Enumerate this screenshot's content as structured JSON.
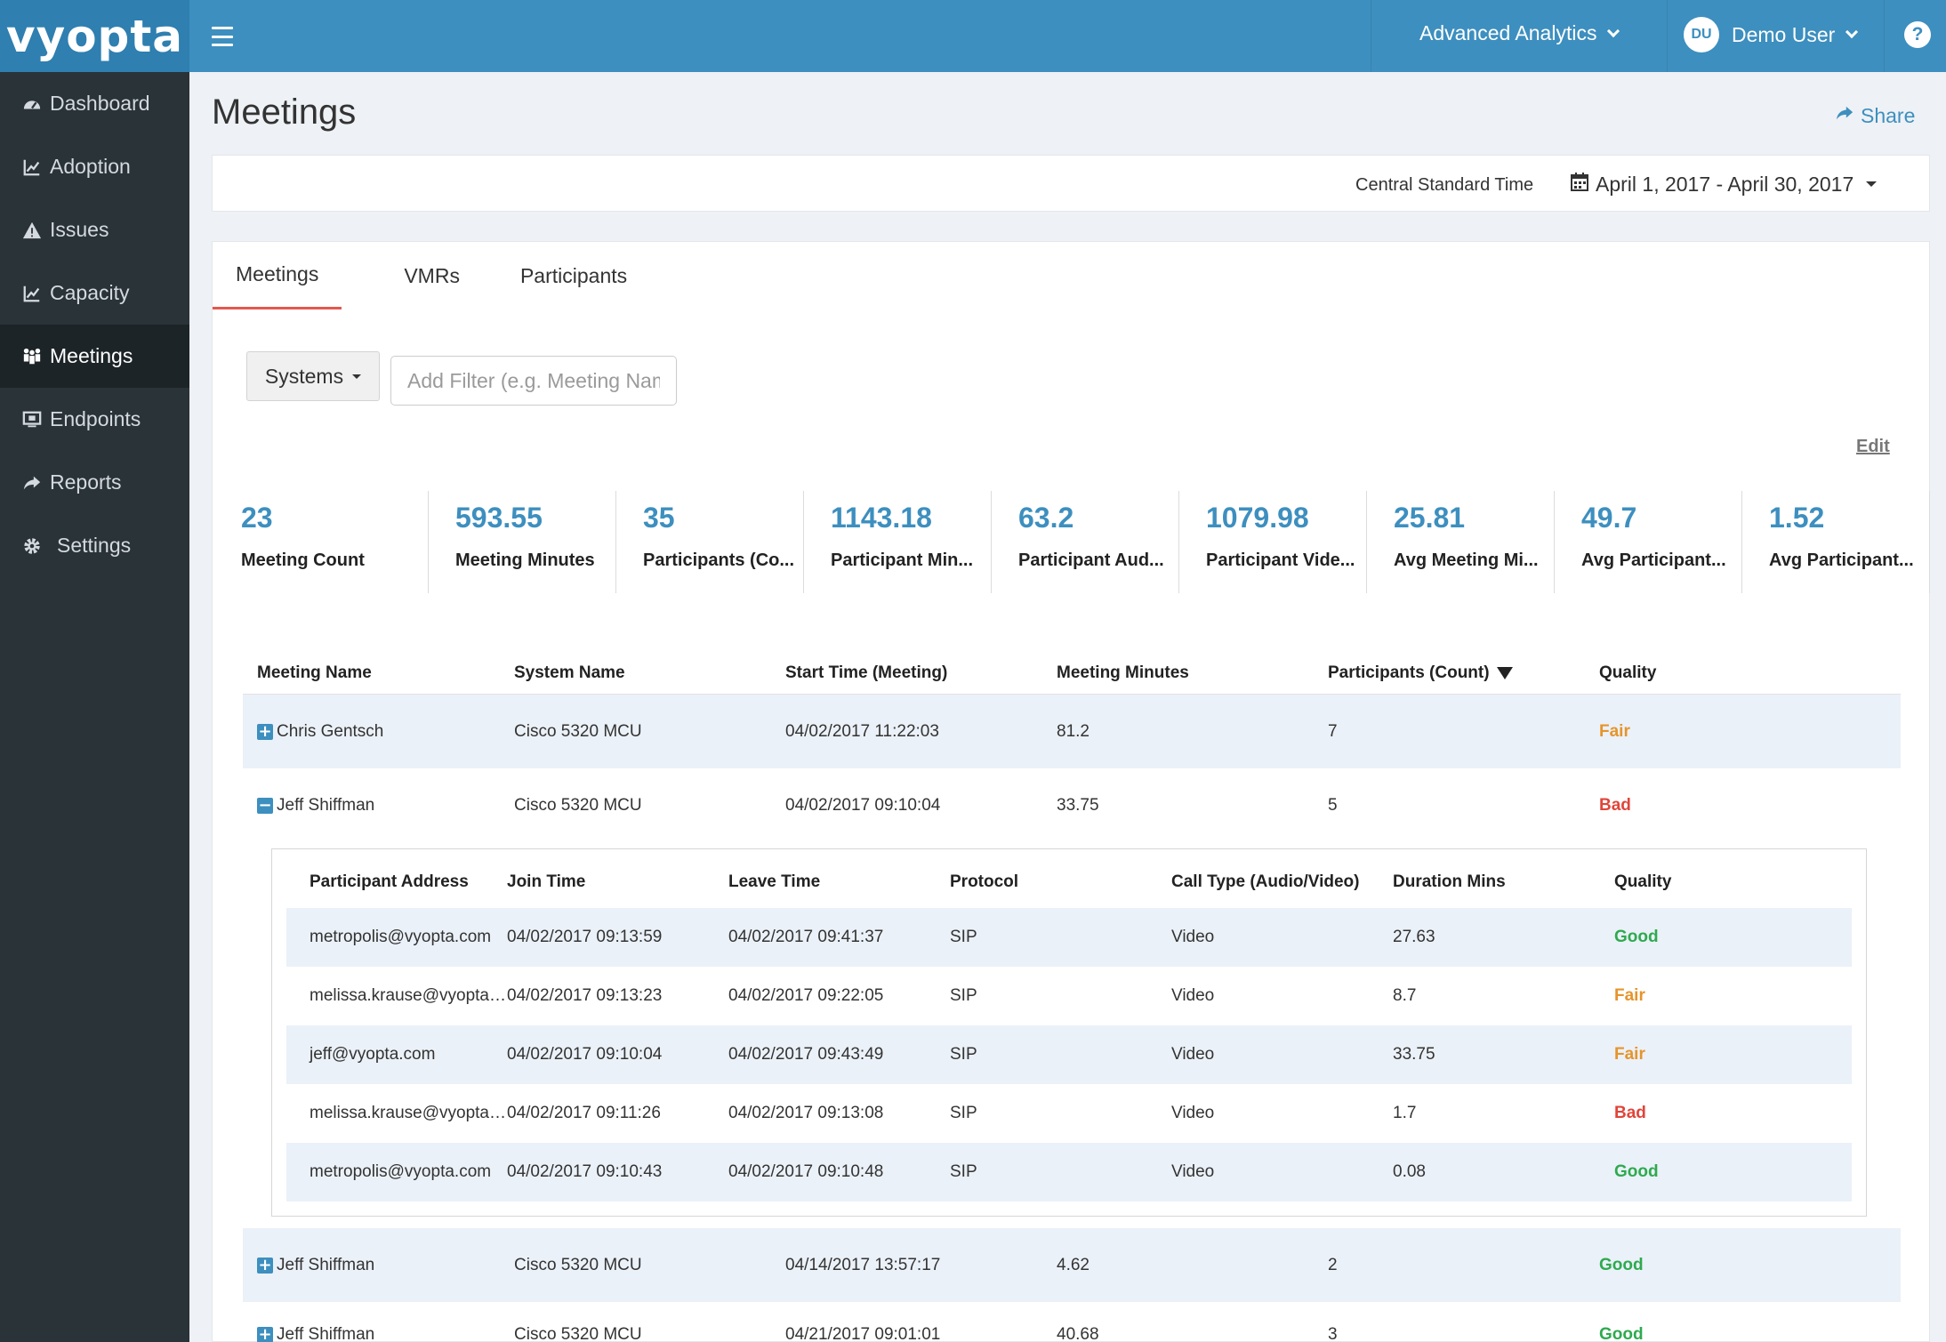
{
  "app": {
    "logo": "vyopta"
  },
  "header": {
    "analytics_label": "Advanced Analytics",
    "user_initials": "DU",
    "user_name": "Demo User",
    "help_symbol": "?"
  },
  "sidebar": {
    "items": [
      {
        "label": "Dashboard",
        "icon": "dashboard-icon"
      },
      {
        "label": "Adoption",
        "icon": "line-chart-icon"
      },
      {
        "label": "Issues",
        "icon": "warning-icon"
      },
      {
        "label": "Capacity",
        "icon": "line-chart-icon"
      },
      {
        "label": "Meetings",
        "icon": "people-icon",
        "active": true
      },
      {
        "label": "Endpoints",
        "icon": "monitor-icon"
      },
      {
        "label": "Reports",
        "icon": "share-icon"
      },
      {
        "label": "Settings",
        "icon": "gear-icon"
      }
    ]
  },
  "page": {
    "title": "Meetings",
    "share_label": "Share",
    "timezone": "Central Standard Time",
    "date_range": "April 1, 2017 - April 30, 2017"
  },
  "tabs": [
    "Meetings",
    "VMRs",
    "Participants"
  ],
  "filter": {
    "systems_label": "Systems",
    "placeholder": "Add Filter (e.g. Meeting Name contains John)",
    "edit_label": "Edit"
  },
  "kpis": [
    {
      "value": "23",
      "label": "Meeting Count"
    },
    {
      "value": "593.55",
      "label": "Meeting Minutes"
    },
    {
      "value": "35",
      "label": "Participants (Co..."
    },
    {
      "value": "1143.18",
      "label": "Participant Min..."
    },
    {
      "value": "63.2",
      "label": "Participant Aud..."
    },
    {
      "value": "1079.98",
      "label": "Participant Vide..."
    },
    {
      "value": "25.81",
      "label": "Avg Meeting Mi..."
    },
    {
      "value": "49.7",
      "label": "Avg Participant..."
    },
    {
      "value": "1.52",
      "label": "Avg Participant..."
    }
  ],
  "meetings_table": {
    "columns": [
      "Meeting Name",
      "System Name",
      "Start Time (Meeting)",
      "Meeting Minutes",
      "Participants (Count)",
      "Quality"
    ],
    "rows": [
      {
        "name": "Chris Gentsch",
        "system": "Cisco 5320 MCU",
        "start": "04/02/2017 11:22:03",
        "minutes": "81.2",
        "participants": "7",
        "quality": "Fair"
      },
      {
        "name": "Jeff Shiffman",
        "system": "Cisco 5320 MCU",
        "start": "04/02/2017 09:10:04",
        "minutes": "33.75",
        "participants": "5",
        "quality": "Bad"
      },
      {
        "name": "Jeff Shiffman",
        "system": "Cisco 5320 MCU",
        "start": "04/14/2017 13:57:17",
        "minutes": "4.62",
        "participants": "2",
        "quality": "Good"
      },
      {
        "name": "Jeff Shiffman",
        "system": "Cisco 5320 MCU",
        "start": "04/21/2017 09:01:01",
        "minutes": "40.68",
        "participants": "3",
        "quality": "Good"
      }
    ]
  },
  "participants_table": {
    "columns": [
      "Participant Address",
      "Join Time",
      "Leave Time",
      "Protocol",
      "Call Type (Audio/Video)",
      "Duration Mins",
      "Quality"
    ],
    "rows": [
      {
        "address": "metropolis@vyopta.com",
        "join": "04/02/2017 09:13:59",
        "leave": "04/02/2017 09:41:37",
        "protocol": "SIP",
        "type": "Video",
        "duration": "27.63",
        "quality": "Good"
      },
      {
        "address": "melissa.krause@vyopta.c...",
        "join": "04/02/2017 09:13:23",
        "leave": "04/02/2017 09:22:05",
        "protocol": "SIP",
        "type": "Video",
        "duration": "8.7",
        "quality": "Fair"
      },
      {
        "address": "jeff@vyopta.com",
        "join": "04/02/2017 09:10:04",
        "leave": "04/02/2017 09:43:49",
        "protocol": "SIP",
        "type": "Video",
        "duration": "33.75",
        "quality": "Fair"
      },
      {
        "address": "melissa.krause@vyopta.c...",
        "join": "04/02/2017 09:11:26",
        "leave": "04/02/2017 09:13:08",
        "protocol": "SIP",
        "type": "Video",
        "duration": "1.7",
        "quality": "Bad"
      },
      {
        "address": "metropolis@vyopta.com",
        "join": "04/02/2017 09:10:43",
        "leave": "04/02/2017 09:10:48",
        "protocol": "SIP",
        "type": "Video",
        "duration": "0.08",
        "quality": "Good"
      }
    ]
  },
  "colors": {
    "accent": "#3d8fbf",
    "sidebar": "#2a3338",
    "good": "#2eaa4f",
    "fair": "#e6942b",
    "bad": "#e0453a"
  }
}
